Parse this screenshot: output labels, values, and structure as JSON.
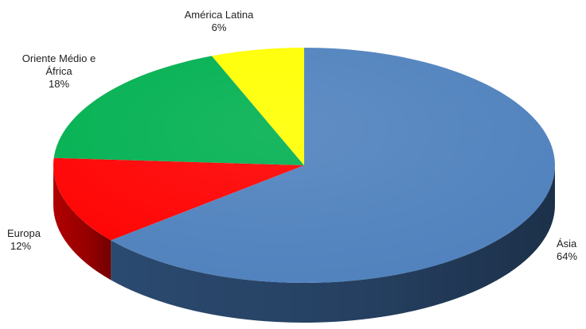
{
  "chart_data": {
    "type": "pie",
    "title": "",
    "three_d": true,
    "slices": [
      {
        "label": "Ásia",
        "value": 64,
        "value_label": "64%",
        "color": "#4F81BD",
        "side_color": "#2B4A70"
      },
      {
        "label": "Europa",
        "value": 12,
        "value_label": "12%",
        "color": "#FF0000",
        "side_color": "#B00000"
      },
      {
        "label": "Oriente Médio e África",
        "label_lines": [
          "Oriente Médio e",
          "África"
        ],
        "value": 18,
        "value_label": "18%",
        "color": "#00B050",
        "side_color": "#007A38"
      },
      {
        "label": "América Latina",
        "value": 6,
        "value_label": "6%",
        "color": "#FFFF00",
        "side_color": "#B8B800"
      }
    ]
  }
}
